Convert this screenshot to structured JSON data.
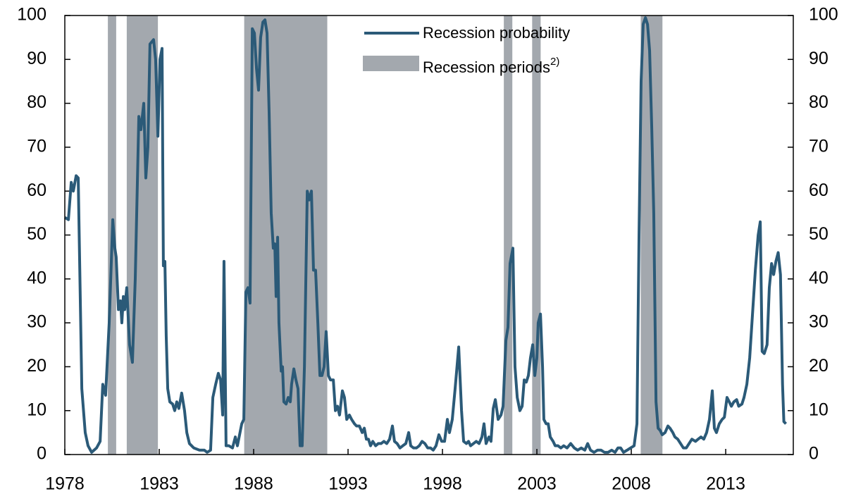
{
  "chart_data": {
    "type": "line",
    "xlim": [
      1978,
      2016.58
    ],
    "xticks": [
      1978,
      1983,
      1988,
      1993,
      1998,
      2003,
      2008,
      2013
    ],
    "ylim": [
      0,
      100
    ],
    "yticks": [
      0,
      10,
      20,
      30,
      40,
      50,
      60,
      70,
      80,
      90,
      100
    ],
    "y2lim": [
      0,
      100
    ],
    "y2ticks": [
      0,
      10,
      20,
      30,
      40,
      50,
      60,
      70,
      80,
      90,
      100
    ],
    "recession_periods": {
      "name": "Recession periods",
      "superscript": "2)",
      "color": "#a3a8ae",
      "ranges": [
        [
          1980.28,
          1980.72
        ],
        [
          1981.28,
          1982.93
        ],
        [
          1987.5,
          1991.9
        ],
        [
          2001.25,
          2001.7
        ],
        [
          2002.75,
          2003.2
        ],
        [
          2008.5,
          2009.65
        ]
      ]
    },
    "x": [
      1978.0,
      1978.19,
      1978.34,
      1978.45,
      1978.6,
      1978.71,
      1978.9,
      1979.08,
      1979.23,
      1979.42,
      1979.68,
      1979.87,
      1980.01,
      1980.16,
      1980.35,
      1980.54,
      1980.65,
      1980.72,
      1980.84,
      1980.95,
      1981.02,
      1981.1,
      1981.17,
      1981.28,
      1981.43,
      1981.58,
      1981.73,
      1981.92,
      1982.03,
      1982.18,
      1982.29,
      1982.4,
      1982.51,
      1982.7,
      1982.81,
      1982.93,
      1983.04,
      1983.15,
      1983.22,
      1983.3,
      1983.37,
      1983.45,
      1983.56,
      1983.71,
      1983.82,
      1983.93,
      1984.04,
      1984.19,
      1984.34,
      1984.46,
      1984.6,
      1984.83,
      1985.13,
      1985.39,
      1985.54,
      1985.72,
      1985.84,
      1985.99,
      1986.13,
      1986.25,
      1986.36,
      1986.43,
      1986.54,
      1986.69,
      1986.88,
      1987.03,
      1987.14,
      1987.37,
      1987.48,
      1987.59,
      1987.7,
      1987.81,
      1987.93,
      1988.04,
      1988.15,
      1988.26,
      1988.37,
      1988.49,
      1988.6,
      1988.71,
      1988.82,
      1988.93,
      1989.04,
      1989.12,
      1989.19,
      1989.27,
      1989.34,
      1989.46,
      1989.53,
      1989.6,
      1989.72,
      1989.83,
      1989.94,
      1990.01,
      1990.13,
      1990.24,
      1990.35,
      1990.46,
      1990.57,
      1990.69,
      1990.84,
      1990.95,
      1991.06,
      1991.17,
      1991.28,
      1991.4,
      1991.51,
      1991.62,
      1991.73,
      1991.84,
      1991.96,
      1992.07,
      1992.22,
      1992.33,
      1992.44,
      1992.55,
      1992.7,
      1992.81,
      1992.93,
      1993.07,
      1993.19,
      1993.34,
      1993.45,
      1993.6,
      1993.75,
      1993.86,
      1993.97,
      1994.08,
      1994.19,
      1994.31,
      1994.46,
      1994.6,
      1994.75,
      1994.9,
      1995.05,
      1995.2,
      1995.35,
      1995.46,
      1995.6,
      1995.75,
      1995.9,
      1996.06,
      1996.21,
      1996.32,
      1996.47,
      1996.62,
      1996.77,
      1996.92,
      1997.07,
      1997.22,
      1997.37,
      1997.51,
      1997.66,
      1997.81,
      1997.96,
      1998.11,
      1998.26,
      1998.37,
      1998.52,
      1998.67,
      1998.86,
      1999.01,
      1999.12,
      1999.27,
      1999.38,
      1999.49,
      1999.64,
      1999.79,
      1999.94,
      2000.09,
      2000.2,
      2000.31,
      2000.46,
      2000.57,
      2000.69,
      2000.8,
      2000.95,
      2001.1,
      2001.21,
      2001.36,
      2001.47,
      2001.58,
      2001.73,
      2001.84,
      2001.96,
      2002.1,
      2002.22,
      2002.33,
      2002.44,
      2002.55,
      2002.66,
      2002.78,
      2002.89,
      2003.0,
      2003.07,
      2003.19,
      2003.3,
      2003.37,
      2003.49,
      2003.6,
      2003.71,
      2003.86,
      2003.97,
      2004.12,
      2004.27,
      2004.42,
      2004.6,
      2004.79,
      2004.98,
      2005.16,
      2005.35,
      2005.54,
      2005.69,
      2005.84,
      2006.03,
      2006.21,
      2006.4,
      2006.58,
      2006.77,
      2006.96,
      2007.14,
      2007.29,
      2007.44,
      2007.59,
      2007.78,
      2007.96,
      2008.15,
      2008.3,
      2008.41,
      2008.52,
      2008.63,
      2008.75,
      2008.86,
      2008.97,
      2009.08,
      2009.19,
      2009.31,
      2009.42,
      2009.53,
      2009.64,
      2009.79,
      2009.94,
      2010.05,
      2010.2,
      2010.31,
      2010.46,
      2010.61,
      2010.76,
      2010.91,
      2011.06,
      2011.21,
      2011.4,
      2011.54,
      2011.69,
      2011.84,
      2011.99,
      2012.14,
      2012.29,
      2012.4,
      2012.51,
      2012.66,
      2012.81,
      2012.93,
      2013.07,
      2013.19,
      2013.3,
      2013.43,
      2013.58,
      2013.69,
      2013.86,
      2013.97,
      2014.12,
      2014.27,
      2014.42,
      2014.57,
      2014.72,
      2014.83,
      2014.93,
      2015.04,
      2015.19,
      2015.31,
      2015.43,
      2015.54,
      2015.66,
      2015.78,
      2015.9,
      2016.01,
      2016.08,
      2016.19
    ],
    "series": [
      {
        "name": "Recession probability",
        "color": "#2b5a78",
        "values": [
          54,
          53.5,
          62,
          60,
          63.5,
          63,
          15,
          5,
          2,
          0.5,
          1.5,
          3,
          16,
          13.5,
          30,
          53.5,
          47,
          45,
          33,
          35,
          30,
          36,
          33,
          38,
          25,
          21,
          40,
          77,
          74,
          80,
          63,
          70,
          93.5,
          94.5,
          90,
          72.5,
          90,
          92.5,
          43,
          44,
          27,
          15,
          12,
          11.5,
          10,
          12,
          10.5,
          14,
          10,
          5,
          2.5,
          1.5,
          1,
          1,
          0.5,
          1,
          13,
          16,
          18.5,
          17,
          9,
          44,
          2,
          2,
          1.5,
          4,
          2,
          7,
          8,
          37,
          38,
          34.5,
          97,
          96,
          88,
          83,
          95,
          98.5,
          99,
          96,
          78,
          55,
          47,
          48,
          36,
          49.5,
          30,
          19,
          20,
          12,
          11.5,
          13,
          12,
          16,
          19.5,
          17,
          15,
          2,
          2,
          20,
          60,
          58,
          60,
          42,
          42,
          30,
          18,
          18,
          20,
          28,
          18,
          17,
          17,
          10,
          11,
          9,
          14.5,
          13,
          8,
          9,
          8,
          7,
          6.5,
          6.5,
          5,
          6,
          3.5,
          3.5,
          2,
          3,
          2,
          2.5,
          2.5,
          3,
          2.5,
          3.5,
          6.5,
          3,
          2.5,
          1.5,
          2,
          2.5,
          5,
          2,
          1.5,
          1.5,
          2,
          3,
          2.5,
          1.5,
          1.5,
          1,
          2,
          4.5,
          3,
          3,
          8,
          5,
          8,
          15,
          24.5,
          10,
          3,
          2.5,
          3,
          2,
          2.5,
          3,
          2.5,
          4,
          7,
          2.5,
          4,
          3,
          10.5,
          12.5,
          8,
          9,
          11,
          26,
          29,
          43.5,
          47,
          20,
          13,
          10,
          11,
          17,
          16.5,
          18,
          22,
          25,
          18,
          22,
          30,
          32,
          20,
          8,
          7,
          7,
          4,
          3,
          2,
          2,
          1.5,
          2,
          1.5,
          2.5,
          1.5,
          1,
          1.5,
          1,
          2.5,
          1,
          0.5,
          1,
          1,
          0.5,
          0.5,
          1,
          0.5,
          1.5,
          1.5,
          0.5,
          1,
          1.5,
          2,
          7,
          50,
          85,
          98,
          99.5,
          98,
          92,
          75,
          55,
          12,
          6,
          5.5,
          4.5,
          5,
          6.5,
          6,
          5,
          4,
          3.5,
          2.5,
          1.5,
          1.5,
          2.5,
          3.5,
          3,
          3.5,
          4,
          3.5,
          5,
          8,
          14.5,
          6,
          5,
          7,
          8,
          8.5,
          13,
          12,
          11,
          12,
          12.5,
          11,
          11.5,
          13,
          16,
          22,
          32,
          42,
          50,
          53,
          23.5,
          23,
          25,
          38,
          43.5,
          41,
          44,
          46,
          41,
          16,
          7.5,
          7
        ]
      }
    ]
  }
}
